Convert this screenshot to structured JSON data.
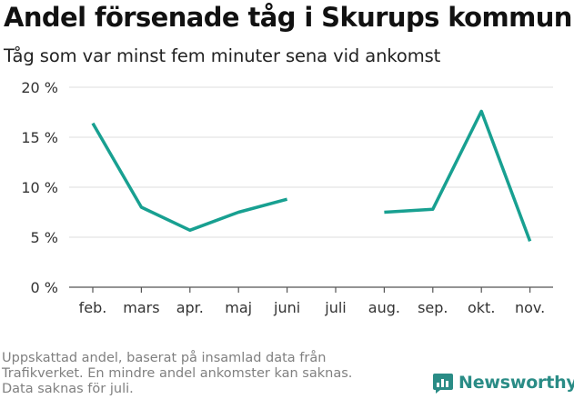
{
  "header": {
    "title": "Andel försenade tåg i Skurups kommun",
    "subtitle": "Tåg som var minst fem minuter sena vid ankomst"
  },
  "footnote": {
    "line1": "Uppskattad andel, baserat på insamlad data från",
    "line2": "Trafikverket. En mindre andel ankomster kan saknas.",
    "line3": "Data saknas för juli."
  },
  "brand": {
    "name": "Newsworthy",
    "icon": "newsworthy-logo-icon",
    "color": "#2a8c86"
  },
  "chart_data": {
    "type": "line",
    "title": "Andel försenade tåg i Skurups kommun",
    "subtitle": "Tåg som var minst fem minuter sena vid ankomst",
    "categories": [
      "feb.",
      "mars",
      "apr.",
      "maj",
      "juni",
      "juli",
      "aug.",
      "sep.",
      "okt.",
      "nov."
    ],
    "series": [
      {
        "values": [
          16.4,
          8.0,
          5.7,
          7.5,
          8.8,
          null,
          7.5,
          7.8,
          17.6,
          4.6
        ],
        "color": "#18a091"
      }
    ],
    "y_ticks": [
      "0 %",
      "5 %",
      "10 %",
      "15 %",
      "20 %"
    ],
    "ylim": [
      0,
      20
    ],
    "grid": true,
    "legend": "none"
  }
}
